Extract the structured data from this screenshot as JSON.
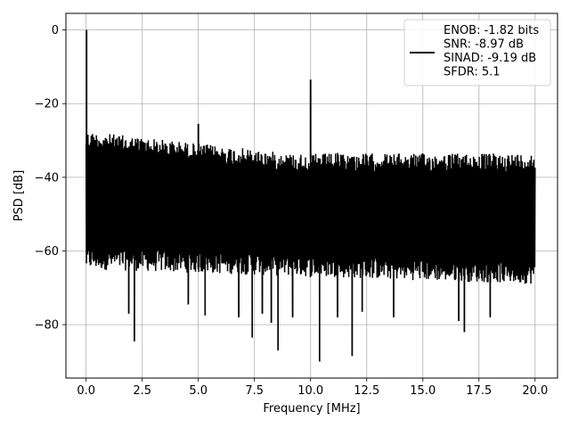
{
  "chart_data": {
    "type": "line",
    "title": "",
    "xlabel": "Frequency [MHz]",
    "ylabel": "PSD [dB]",
    "xlim": [
      -0.9,
      21.0
    ],
    "ylim": [
      -94.5,
      4.5
    ],
    "grid": true,
    "x_ticks": [
      0.0,
      2.5,
      5.0,
      7.5,
      10.0,
      12.5,
      15.0,
      17.5,
      20.0
    ],
    "x_tick_labels": [
      "0.0",
      "2.5",
      "5.0",
      "7.5",
      "10.0",
      "12.5",
      "15.0",
      "17.5",
      "20.0"
    ],
    "y_ticks": [
      0,
      -20,
      -40,
      -60,
      -80
    ],
    "y_tick_labels": [
      "0",
      "−20",
      "−40",
      "−60",
      "−80"
    ],
    "legend": {
      "position": "top-right",
      "entries": [
        "ENOB: -1.82 bits",
        "SNR: -8.97 dB",
        "SINAD: -9.19 dB",
        "SFDR: 5.1"
      ]
    },
    "series": [
      {
        "color": "#000000",
        "description_of_shape": "dense noise floor spanning roughly -65 dB to -30 dB across 0-20 MHz",
        "x_range": [
          0.0,
          20.0
        ],
        "noise_floor_upper_start": -29,
        "noise_floor_upper_end": -35,
        "noise_floor_lower_start": -62,
        "noise_floor_lower_end": -66,
        "peaks": [
          {
            "x": 0.02,
            "y": 0.0
          },
          {
            "x": 5.0,
            "y": -25.5
          },
          {
            "x": 10.0,
            "y": -13.5
          }
        ],
        "dips": [
          {
            "x": 1.9,
            "y": -77.0
          },
          {
            "x": 2.15,
            "y": -84.5
          },
          {
            "x": 4.55,
            "y": -74.5
          },
          {
            "x": 5.3,
            "y": -77.5
          },
          {
            "x": 6.8,
            "y": -78.0
          },
          {
            "x": 7.4,
            "y": -83.5
          },
          {
            "x": 7.85,
            "y": -77.0
          },
          {
            "x": 8.25,
            "y": -79.5
          },
          {
            "x": 8.55,
            "y": -87.0
          },
          {
            "x": 9.2,
            "y": -78.0
          },
          {
            "x": 10.4,
            "y": -90.0
          },
          {
            "x": 11.2,
            "y": -78.0
          },
          {
            "x": 11.85,
            "y": -88.5
          },
          {
            "x": 12.3,
            "y": -76.5
          },
          {
            "x": 13.7,
            "y": -78.0
          },
          {
            "x": 16.6,
            "y": -79.0
          },
          {
            "x": 16.85,
            "y": -82.0
          },
          {
            "x": 18.0,
            "y": -78.0
          }
        ]
      }
    ]
  }
}
